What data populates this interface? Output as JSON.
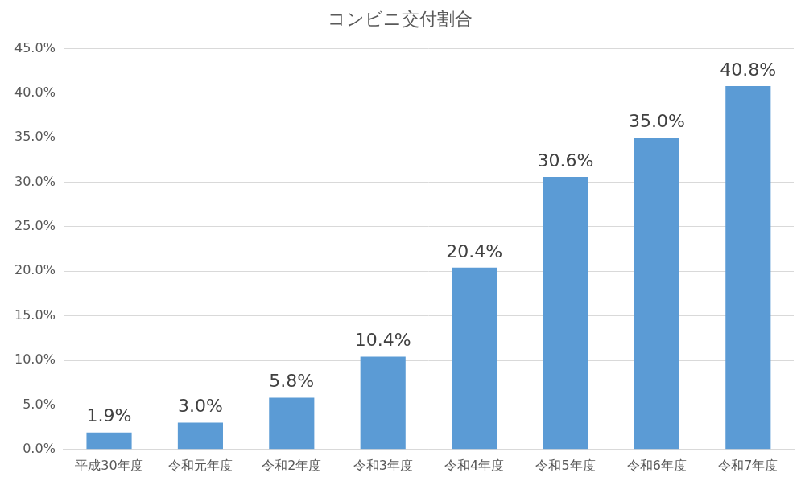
{
  "chart_data": {
    "type": "bar",
    "title": "コンビニ交付割合",
    "categories": [
      "平成30年度",
      "令和元年度",
      "令和2年度",
      "令和3年度",
      "令和4年度",
      "令和5年度",
      "令和6年度",
      "令和7年度"
    ],
    "values": [
      1.9,
      3.0,
      5.8,
      10.4,
      20.4,
      30.6,
      35.0,
      40.8
    ],
    "value_labels": [
      "1.9%",
      "3.0%",
      "5.8%",
      "10.4%",
      "20.4%",
      "30.6%",
      "35.0%",
      "40.8%"
    ],
    "color": "#5b9bd5",
    "ylim": [
      0,
      45
    ],
    "yticks": [
      {
        "value": 0,
        "label": "0.0%"
      },
      {
        "value": 5,
        "label": "5.0%"
      },
      {
        "value": 10,
        "label": "10.0%"
      },
      {
        "value": 15,
        "label": "15.0%"
      },
      {
        "value": 20,
        "label": "20.0%"
      },
      {
        "value": 25,
        "label": "25.0%"
      },
      {
        "value": 30,
        "label": "30.0%"
      },
      {
        "value": 35,
        "label": "35.0%"
      },
      {
        "value": 40,
        "label": "40.0%"
      },
      {
        "value": 45,
        "label": "45.0%"
      }
    ],
    "grid": true,
    "data_labels": true
  }
}
